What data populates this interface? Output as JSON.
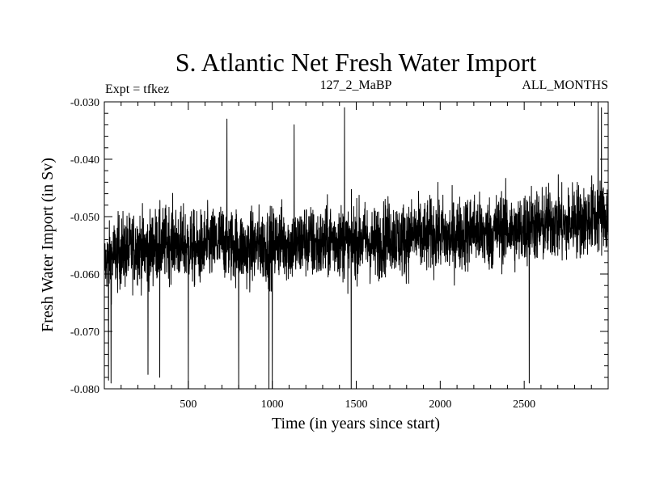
{
  "chart_data": {
    "type": "line",
    "title": "S. Atlantic Net Fresh Water Import",
    "annotations": {
      "left": "Expt = tfkez",
      "center": "127_2_MaBP",
      "right": "ALL_MONTHS"
    },
    "xlabel": "Time (in years since start)",
    "ylabel": "Fresh Water Import (in Sv)",
    "xlim": [
      0,
      3000
    ],
    "ylim": [
      -0.08,
      -0.03
    ],
    "x_ticks": [
      500,
      1000,
      1500,
      2000,
      2500
    ],
    "x_tick_labels": [
      "500",
      "1000",
      "1500",
      "2000",
      "2500"
    ],
    "y_ticks": [
      -0.08,
      -0.07,
      -0.06,
      -0.05,
      -0.04,
      -0.03
    ],
    "y_tick_labels": [
      "-0.080",
      "-0.070",
      "-0.060",
      "-0.050",
      "-0.040",
      "-0.030"
    ],
    "grid": false,
    "legend": "none",
    "series": [
      {
        "color": "#000000",
        "x": [
          0,
          50,
          100,
          150,
          200,
          250,
          300,
          350,
          400,
          450,
          500,
          550,
          600,
          650,
          700,
          750,
          800,
          850,
          900,
          950,
          1000,
          1050,
          1100,
          1150,
          1200,
          1250,
          1300,
          1350,
          1400,
          1450,
          1500,
          1550,
          1600,
          1650,
          1700,
          1750,
          1800,
          1850,
          1900,
          1950,
          2000,
          2050,
          2100,
          2150,
          2200,
          2250,
          2300,
          2350,
          2400,
          2450,
          2500,
          2550,
          2600,
          2650,
          2700,
          2750,
          2800,
          2850,
          2900,
          2950,
          3000
        ],
        "y": [
          -0.058,
          -0.057,
          -0.056,
          -0.056,
          -0.055,
          -0.056,
          -0.055,
          -0.055,
          -0.054,
          -0.055,
          -0.055,
          -0.056,
          -0.055,
          -0.055,
          -0.054,
          -0.055,
          -0.055,
          -0.056,
          -0.055,
          -0.055,
          -0.055,
          -0.054,
          -0.055,
          -0.055,
          -0.054,
          -0.055,
          -0.055,
          -0.054,
          -0.054,
          -0.055,
          -0.054,
          -0.054,
          -0.055,
          -0.054,
          -0.053,
          -0.054,
          -0.054,
          -0.053,
          -0.054,
          -0.053,
          -0.053,
          -0.054,
          -0.053,
          -0.053,
          -0.052,
          -0.053,
          -0.053,
          -0.052,
          -0.052,
          -0.053,
          -0.052,
          -0.051,
          -0.052,
          -0.051,
          -0.051,
          -0.052,
          -0.05,
          -0.051,
          -0.05,
          -0.05,
          -0.05
        ],
        "spread": [
          0.004,
          0.005,
          0.005,
          0.005,
          0.005,
          0.005,
          0.005,
          0.005,
          0.005,
          0.005,
          0.005,
          0.005,
          0.005,
          0.005,
          0.005,
          0.005,
          0.005,
          0.005,
          0.005,
          0.005,
          0.005,
          0.005,
          0.005,
          0.005,
          0.005,
          0.005,
          0.005,
          0.005,
          0.005,
          0.005,
          0.005,
          0.005,
          0.005,
          0.005,
          0.005,
          0.005,
          0.005,
          0.005,
          0.005,
          0.005,
          0.005,
          0.005,
          0.005,
          0.005,
          0.005,
          0.005,
          0.005,
          0.005,
          0.005,
          0.005,
          0.005,
          0.005,
          0.005,
          0.005,
          0.005,
          0.005,
          0.005,
          0.005,
          0.005,
          0.005,
          0.005
        ],
        "samples_per_year": 1,
        "extremes": [
          {
            "x": 25,
            "y": -0.0785
          },
          {
            "x": 40,
            "y": -0.079
          },
          {
            "x": 260,
            "y": -0.0775
          },
          {
            "x": 330,
            "y": -0.078
          },
          {
            "x": 500,
            "y": -0.08
          },
          {
            "x": 800,
            "y": -0.08
          },
          {
            "x": 980,
            "y": -0.08
          },
          {
            "x": 1000,
            "y": -0.08
          },
          {
            "x": 1470,
            "y": -0.08
          },
          {
            "x": 1430,
            "y": -0.031
          },
          {
            "x": 2530,
            "y": -0.079
          },
          {
            "x": 2940,
            "y": -0.03
          },
          {
            "x": 2960,
            "y": -0.031
          },
          {
            "x": 730,
            "y": -0.033
          },
          {
            "x": 1130,
            "y": -0.034
          }
        ]
      }
    ]
  }
}
